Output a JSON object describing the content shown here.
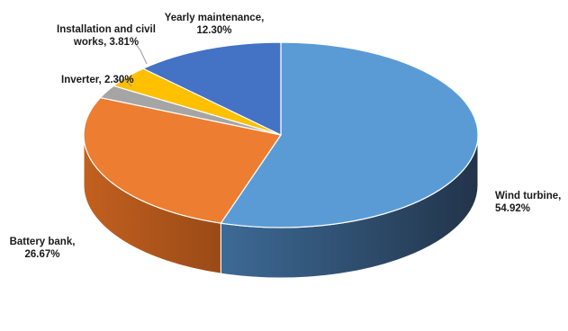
{
  "chart_data": {
    "type": "pie",
    "style": "3d",
    "title": "",
    "slices": [
      {
        "name": "Wind turbine",
        "value": 54.92,
        "label_lines": [
          "Wind turbine,",
          "54.92%"
        ],
        "color": "#5b9bd5",
        "side_color": "#2f5680"
      },
      {
        "name": "Battery bank",
        "value": 26.67,
        "label_lines": [
          "Battery bank,",
          "26.67%"
        ],
        "color": "#ed7d31",
        "side_color": "#a4521a"
      },
      {
        "name": "Inverter",
        "value": 2.3,
        "label_lines": [
          "Inverter, 2.30%"
        ],
        "color": "#a5a5a5",
        "side_color": "#6e6e6e"
      },
      {
        "name": "Installation and civil works",
        "value": 3.81,
        "label_lines": [
          "Installation and civil",
          "works, 3.81%"
        ],
        "color": "#ffc000",
        "side_color": "#b38600"
      },
      {
        "name": "Yearly maintenance",
        "value": 12.3,
        "label_lines": [
          "Yearly maintenance,",
          "12.30%"
        ],
        "color": "#4472c4",
        "side_color": "#2c4c85"
      }
    ]
  }
}
